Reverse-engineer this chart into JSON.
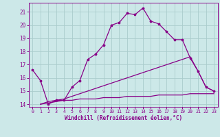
{
  "xlabel": "Windchill (Refroidissement éolien,°C)",
  "background_color": "#cce8e8",
  "line_color": "#880088",
  "grid_color": "#aacccc",
  "xlim": [
    -0.5,
    23.5
  ],
  "ylim": [
    13.8,
    21.7
  ],
  "yticks": [
    14,
    15,
    16,
    17,
    18,
    19,
    20,
    21
  ],
  "xticks": [
    0,
    1,
    2,
    3,
    4,
    5,
    6,
    7,
    8,
    9,
    10,
    11,
    12,
    13,
    14,
    15,
    16,
    17,
    18,
    19,
    20,
    21,
    22,
    23
  ],
  "line1_x": [
    0,
    1,
    2,
    3,
    4,
    5,
    6,
    7,
    8,
    9,
    10,
    11,
    12,
    13,
    14,
    15,
    16,
    17,
    18,
    19,
    20,
    21,
    22,
    23
  ],
  "line1_y": [
    16.6,
    15.8,
    14.0,
    14.3,
    14.3,
    15.3,
    15.8,
    17.4,
    17.8,
    18.5,
    20.0,
    20.2,
    20.9,
    20.8,
    21.3,
    20.3,
    20.1,
    19.5,
    18.9,
    18.9,
    17.5,
    16.5,
    15.3,
    15.0
  ],
  "line2_x": [
    1,
    2,
    3,
    4,
    5,
    6,
    7,
    8,
    9,
    10,
    11,
    12,
    13,
    14,
    15,
    16,
    17,
    18,
    19,
    20,
    21,
    22,
    23
  ],
  "line2_y": [
    14.0,
    14.2,
    14.3,
    14.4,
    14.6,
    14.8,
    15.0,
    15.2,
    15.4,
    15.6,
    15.8,
    16.0,
    16.2,
    16.4,
    16.6,
    16.8,
    17.0,
    17.2,
    17.4,
    17.6,
    16.5,
    15.3,
    15.0
  ],
  "line3_x": [
    1,
    2,
    3,
    4,
    5,
    6,
    7,
    8,
    9,
    10,
    11,
    12,
    13,
    14,
    15,
    16,
    17,
    18,
    19,
    20,
    21,
    22,
    23
  ],
  "line3_y": [
    14.0,
    14.1,
    14.2,
    14.3,
    14.3,
    14.4,
    14.4,
    14.4,
    14.5,
    14.5,
    14.5,
    14.6,
    14.6,
    14.6,
    14.6,
    14.7,
    14.7,
    14.7,
    14.7,
    14.8,
    14.8,
    14.8,
    14.8
  ]
}
